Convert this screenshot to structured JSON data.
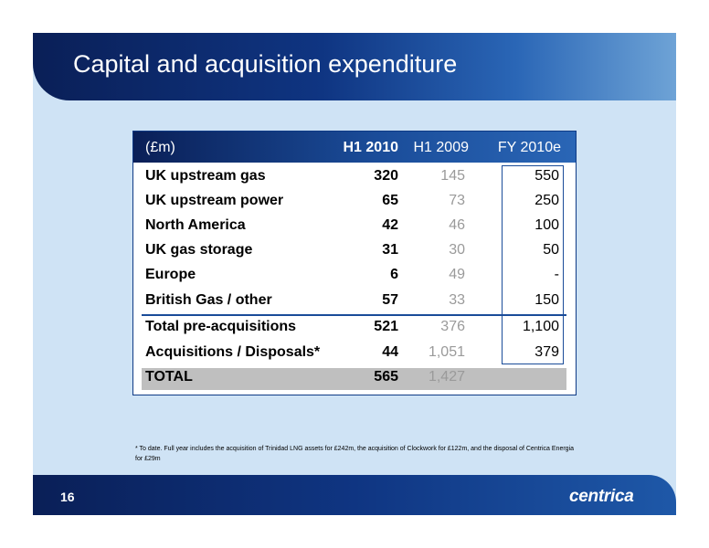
{
  "title": "Capital and acquisition expenditure",
  "table": {
    "headers": {
      "unit": "(£m)",
      "col1": "H1 2010",
      "col2": "H1 2009",
      "col3": "FY 2010e"
    },
    "rows": [
      {
        "label": "UK upstream gas",
        "h1_2010": "320",
        "h1_2009": "145",
        "fy_2010e": "550"
      },
      {
        "label": "UK upstream power",
        "h1_2010": "65",
        "h1_2009": "73",
        "fy_2010e": "250"
      },
      {
        "label": "North America",
        "h1_2010": "42",
        "h1_2009": "46",
        "fy_2010e": "100"
      },
      {
        "label": "UK gas storage",
        "h1_2010": "31",
        "h1_2009": "30",
        "fy_2010e": "50"
      },
      {
        "label": "Europe",
        "h1_2010": "6",
        "h1_2009": "49",
        "fy_2010e": "-"
      },
      {
        "label": "British Gas / other",
        "h1_2010": "57",
        "h1_2009": "33",
        "fy_2010e": "150"
      },
      {
        "label": "Total pre-acquisitions",
        "h1_2010": "521",
        "h1_2009": "376",
        "fy_2010e": "1,100"
      },
      {
        "label": "Acquisitions / Disposals*",
        "h1_2010": "44",
        "h1_2009": "1,051",
        "fy_2010e": "379"
      },
      {
        "label": "TOTAL",
        "h1_2010": "565",
        "h1_2009": "1,427",
        "fy_2010e": ""
      }
    ]
  },
  "footnote": "* To date.  Full year includes the acquisition of Trinidad LNG assets for £242m, the acquisition of Clockwork for £122m, and the disposal of Centrica Energia for £29m",
  "footer": {
    "page_number": "16",
    "logo_text": "centrica"
  }
}
